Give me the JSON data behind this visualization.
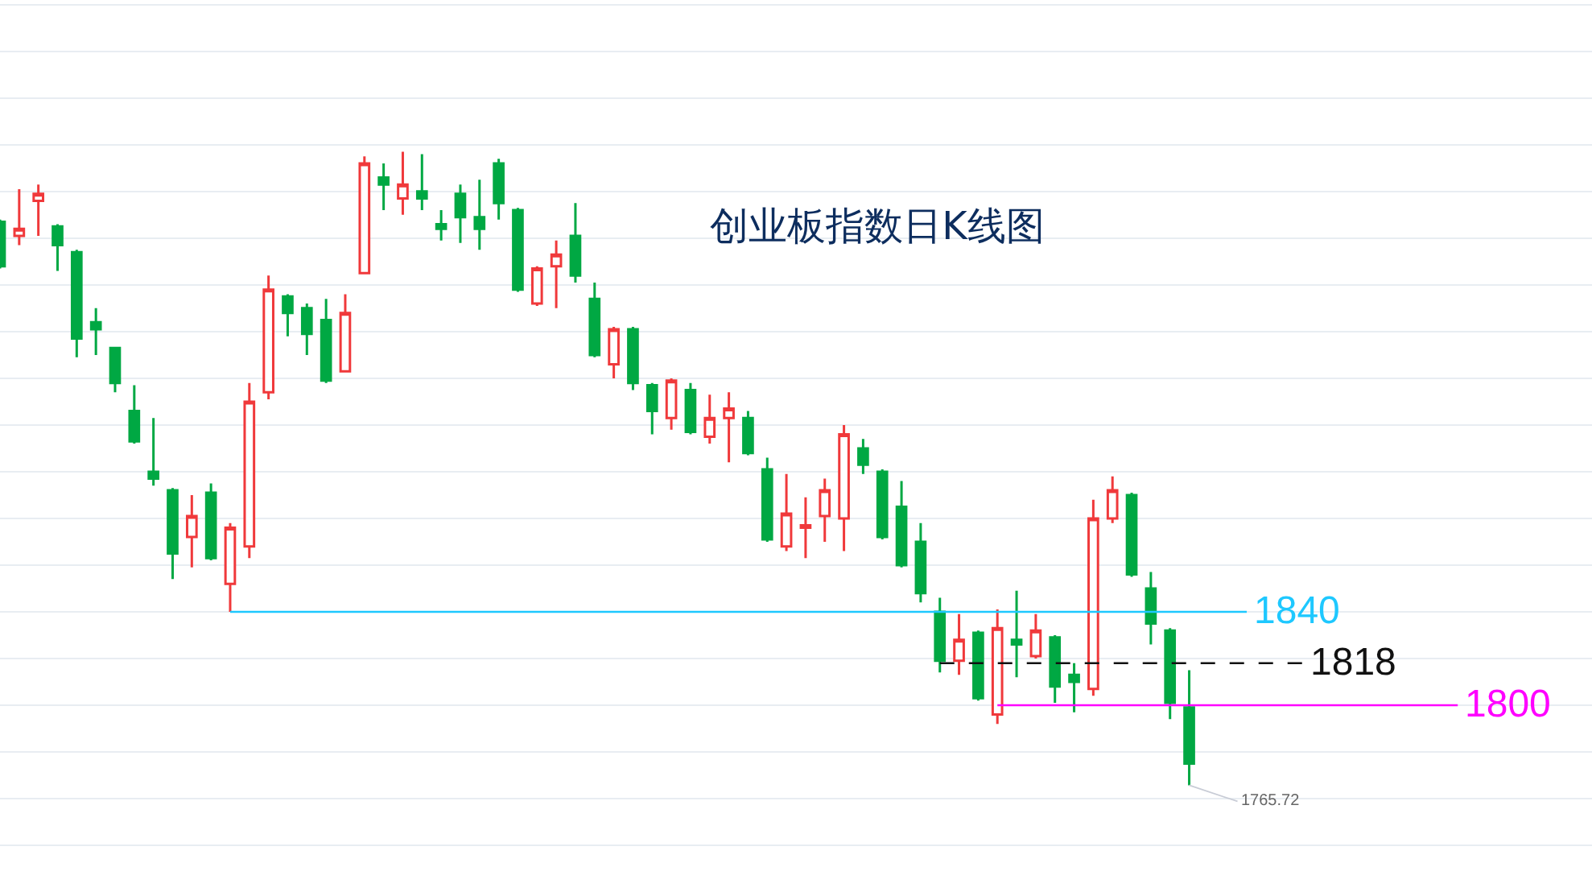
{
  "chart_data": {
    "type": "candlestick",
    "title": "创业板指数日K线图",
    "categories": [
      null,
      null,
      null,
      null,
      null,
      null,
      null,
      null,
      null,
      null,
      null,
      null,
      null,
      null,
      null,
      null,
      null,
      null,
      null,
      null,
      null,
      null,
      null,
      null,
      null,
      null,
      null,
      null,
      null,
      null,
      null,
      null,
      null,
      null,
      null,
      null,
      null,
      null,
      null,
      null,
      null,
      null,
      null,
      null,
      null,
      null,
      null,
      null,
      null,
      null,
      null,
      null,
      null,
      null,
      null,
      null,
      null,
      null,
      null,
      null,
      null,
      null,
      null
    ],
    "ohlc": [
      [
        2007,
        2008,
        1987,
        1988
      ],
      [
        2001,
        2021,
        1997,
        2004
      ],
      [
        2016,
        2023,
        2001,
        2019
      ],
      [
        2005,
        2006,
        1986,
        1997
      ],
      [
        1994,
        1995,
        1949,
        1957
      ],
      [
        1964,
        1970,
        1950,
        1961
      ],
      [
        1953,
        1953,
        1934,
        1938
      ],
      [
        1926,
        1937,
        1912,
        1913
      ],
      [
        1900,
        1923,
        1894,
        1897
      ],
      [
        1892,
        1893,
        1854,
        1865
      ],
      [
        1872,
        1890,
        1859,
        1881
      ],
      [
        1891,
        1895,
        1862,
        1863
      ],
      [
        1852,
        1878,
        1840,
        1876
      ],
      [
        1868,
        1938,
        1863,
        1930
      ],
      [
        1934,
        1984,
        1931,
        1978
      ],
      [
        1975,
        1976,
        1958,
        1968
      ],
      [
        1970,
        1972,
        1950,
        1959
      ],
      [
        1965,
        1974,
        1938,
        1939
      ],
      [
        1943,
        1976,
        1943,
        1968
      ],
      [
        1985,
        2035,
        1985,
        2032
      ],
      [
        2026,
        2032,
        2012,
        2023
      ],
      [
        2017,
        2037,
        2010,
        2023
      ],
      [
        2020,
        2036,
        2012,
        2017
      ],
      [
        2006,
        2012,
        1999,
        2004
      ],
      [
        2019,
        2023,
        1998,
        2009
      ],
      [
        2009,
        2025,
        1995,
        2004
      ],
      [
        2032,
        2034,
        2008,
        2015
      ],
      [
        2012,
        2013,
        1977,
        1978
      ],
      [
        1972,
        1988,
        1971,
        1987
      ],
      [
        1988,
        1999,
        1970,
        1993
      ],
      [
        2001,
        2015,
        1981,
        1984
      ],
      [
        1974,
        1981,
        1949,
        1950
      ],
      [
        1946,
        1962,
        1940,
        1961
      ],
      [
        1961,
        1962,
        1935,
        1938
      ],
      [
        1937,
        1938,
        1916,
        1926
      ],
      [
        1923,
        1940,
        1918,
        1939
      ],
      [
        1935,
        1938,
        1916,
        1917
      ],
      [
        1915,
        1933,
        1912,
        1923
      ],
      [
        1923,
        1934,
        1904,
        1927
      ],
      [
        1923,
        1926,
        1907,
        1908
      ],
      [
        1901,
        1906,
        1870,
        1871
      ],
      [
        1868,
        1899,
        1866,
        1882
      ],
      [
        1876,
        1889,
        1863,
        1877
      ],
      [
        1881,
        1897,
        1870,
        1892
      ],
      [
        1880,
        1920,
        1866,
        1916
      ],
      [
        1910,
        1914,
        1899,
        1903
      ],
      [
        1900,
        1901,
        1871,
        1872
      ],
      [
        1885,
        1896,
        1859,
        1860
      ],
      [
        1870,
        1878,
        1844,
        1848
      ],
      [
        1840,
        1846,
        1814,
        1819
      ],
      [
        1819,
        1839,
        1813,
        1828
      ],
      [
        1831,
        1832,
        1802,
        1803
      ],
      [
        1796,
        1841,
        1792,
        1833
      ],
      [
        1828,
        1849,
        1812,
        1826
      ],
      [
        1821,
        1839,
        1820,
        1832
      ],
      [
        1829,
        1830,
        1801,
        1808
      ],
      [
        1813,
        1818,
        1797,
        1810
      ],
      [
        1807,
        1888,
        1804,
        1880
      ],
      [
        1880,
        1898,
        1878,
        1892
      ],
      [
        1890,
        1891,
        1855,
        1856
      ],
      [
        1850,
        1857,
        1826,
        1835
      ],
      [
        1832,
        1833,
        1794,
        1801
      ],
      [
        1799,
        1815,
        1765.72,
        1775
      ]
    ],
    "colors": [
      "#00a843",
      "#f0393b",
      "#f0393b",
      "#00a843",
      "#00a843",
      "#00a843",
      "#00a843",
      "#00a843",
      "#00a843",
      "#00a843",
      "#f0393b",
      "#00a843",
      "#f0393b",
      "#f0393b",
      "#f0393b",
      "#00a843",
      "#00a843",
      "#00a843",
      "#f0393b",
      "#f0393b",
      "#00a843",
      "#f0393b",
      "#00a843",
      "#00a843",
      "#00a843",
      "#00a843",
      "#00a843",
      "#00a843",
      "#f0393b",
      "#f0393b",
      "#00a843",
      "#00a843",
      "#f0393b",
      "#00a843",
      "#00a843",
      "#f0393b",
      "#00a843",
      "#f0393b",
      "#f0393b",
      "#00a843",
      "#00a843",
      "#f0393b",
      "#f0393b",
      "#f0393b",
      "#f0393b",
      "#00a843",
      "#00a843",
      "#00a843",
      "#00a843",
      "#00a843",
      "#f0393b",
      "#00a843",
      "#f0393b",
      "#00a843",
      "#f0393b",
      "#00a843",
      "#00a843",
      "#f0393b",
      "#f0393b",
      "#00a843",
      "#00a843",
      "#00a843",
      "#00a843"
    ],
    "ylim": [
      1720,
      2102
    ],
    "yticks": [
      {
        "value": 1740,
        "label": null
      },
      {
        "value": 1760,
        "label": null
      },
      {
        "value": 1780,
        "label": null
      },
      {
        "value": 1800,
        "label": null
      },
      {
        "value": 1820,
        "label": null
      },
      {
        "value": 1840,
        "label": null
      },
      {
        "value": 1860,
        "label": null
      },
      {
        "value": 1880,
        "label": null
      },
      {
        "value": 1900,
        "label": null
      },
      {
        "value": 1920,
        "label": null
      },
      {
        "value": 1940,
        "label": null
      },
      {
        "value": 1960,
        "label": null
      },
      {
        "value": 1980,
        "label": null
      },
      {
        "value": 2000,
        "label": null
      },
      {
        "value": 2020,
        "label": null
      },
      {
        "value": 2040,
        "label": null
      },
      {
        "value": 2060,
        "label": null
      },
      {
        "value": 2080,
        "label": null
      },
      {
        "value": 2100,
        "label": null
      }
    ],
    "grid": "y",
    "ref_lines": [
      {
        "axis": "y",
        "value": 1840,
        "label": "1840",
        "color": "#1ec8ff",
        "line_style": "solid"
      },
      {
        "axis": "y",
        "value": 1818,
        "label": "1818",
        "color": "#111111",
        "line_style": "dashed"
      },
      {
        "axis": "y",
        "value": 1800,
        "label": "1800",
        "color": "#ff00ff",
        "line_style": "solid"
      }
    ],
    "annotations": [
      "1765.72"
    ]
  }
}
